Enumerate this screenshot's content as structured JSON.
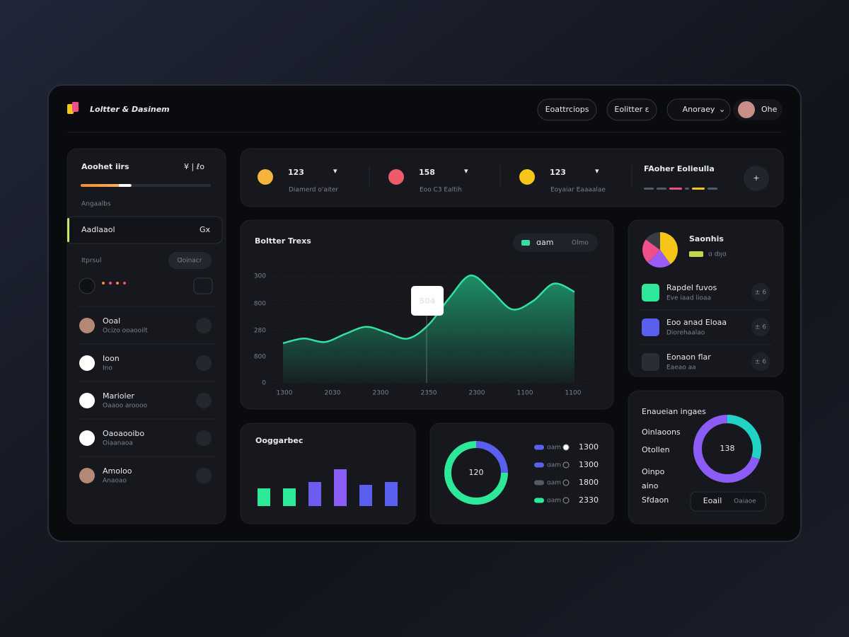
{
  "header": {
    "title": "Loltter & Dasinem",
    "nav": [
      "Eoattrciops",
      "Eolitter ɛ",
      "Anoraey"
    ],
    "user": "Ohe"
  },
  "sidebar": {
    "title": "Aoohet iirs",
    "title_aside": "¥ | ℓo",
    "progress": 39,
    "section": "Angaalbs",
    "selected": "Aadlaaol",
    "selected_tag": "Gx",
    "filter_label": "Itprsul",
    "filter_button": "Ɑoinacr",
    "contacts": [
      {
        "name": "Ooal",
        "detail": "Ocizo ooaooilt"
      },
      {
        "name": "Ioon",
        "detail": "Ino"
      },
      {
        "name": "Marioler",
        "detail": "Oaaoo aroooo"
      },
      {
        "name": "Oaoaooibo",
        "detail": "Oiaanaoa"
      },
      {
        "name": "Amoloo",
        "detail": "Anaoao"
      }
    ]
  },
  "stats": [
    {
      "value": 123,
      "label": "Diamerd o'aiter"
    },
    {
      "value": 158,
      "label": "Eoo C3 Ealtih"
    },
    {
      "value": 123,
      "label": "Eoyaiar Eaaaalae"
    }
  ],
  "stats_panel": {
    "title": "FAoher Eolieulla"
  },
  "trend_chart": {
    "title": "Boltter Trexs",
    "toggle": [
      "ɑam",
      "Olmo"
    ],
    "y_labels": [
      "300",
      "800",
      "280",
      "800",
      "0"
    ],
    "x_labels": [
      "1300",
      "2030",
      "2300",
      "2350",
      "2300",
      "1100",
      "1100"
    ],
    "values": [
      34,
      38,
      35,
      42,
      48,
      43,
      38,
      50,
      73,
      92,
      79,
      63,
      70,
      85,
      78
    ],
    "ylim": [
      0,
      100
    ],
    "tooltip": 504,
    "color": "#34e0a1"
  },
  "bars_chart": {
    "title": "Ooggarbec",
    "values": [
      25,
      25,
      34,
      52,
      30,
      34
    ],
    "ylim": [
      0,
      60
    ],
    "colors": [
      "#2ee89a",
      "#2ee89a",
      "#6d5cf0",
      "#8b5cf6",
      "#5b5ff0",
      "#5b5ff0"
    ]
  },
  "ring_chart": {
    "center_label": 120,
    "segments": [
      25,
      75
    ],
    "colors": [
      "#5b5ff0",
      "#2ee89a"
    ],
    "legend": [
      {
        "label": "ɑam",
        "value": 1300,
        "color": "#5b5ff0"
      },
      {
        "label": "ɑam",
        "value": 1300,
        "color": "#5b5ff0"
      },
      {
        "label": "ɑam",
        "value": 1800,
        "color": "#555a66"
      },
      {
        "label": "ɑam",
        "value": 2330,
        "color": "#2ee89a"
      }
    ]
  },
  "share_panel": {
    "title": "Saonhis",
    "subtitle": "ɑ ȸȷɑ",
    "pie": [
      40,
      22,
      23,
      15
    ],
    "pie_colors": [
      "#f5c518",
      "#9b5cf6",
      "#ee4f8b",
      "#3a3d46"
    ],
    "items": [
      {
        "title": "Rapdel fuvos",
        "detail": "Eve iaad lioaa",
        "action": "± 6",
        "color": "#2ee89a"
      },
      {
        "title": "Eoo anad Eloaa",
        "detail": "Diorehaalao",
        "action": "± 6",
        "color": "#5b5ff0"
      },
      {
        "title": "Eonaon flar",
        "detail": "Eaeao aa",
        "action": "± 6",
        "color": "#2a2d36"
      }
    ]
  },
  "gauge_panel": {
    "title": "Enaueian ingaes",
    "labels": [
      "Oinlaoons",
      "Otollen",
      "Oinpo",
      "aino",
      "Sfdaon"
    ],
    "center_label": 138,
    "segments": [
      30,
      70
    ],
    "colors": [
      "#22d3c5",
      "#8b5cf6"
    ],
    "buttons": [
      "Eoail",
      "Oaiaoe"
    ]
  }
}
